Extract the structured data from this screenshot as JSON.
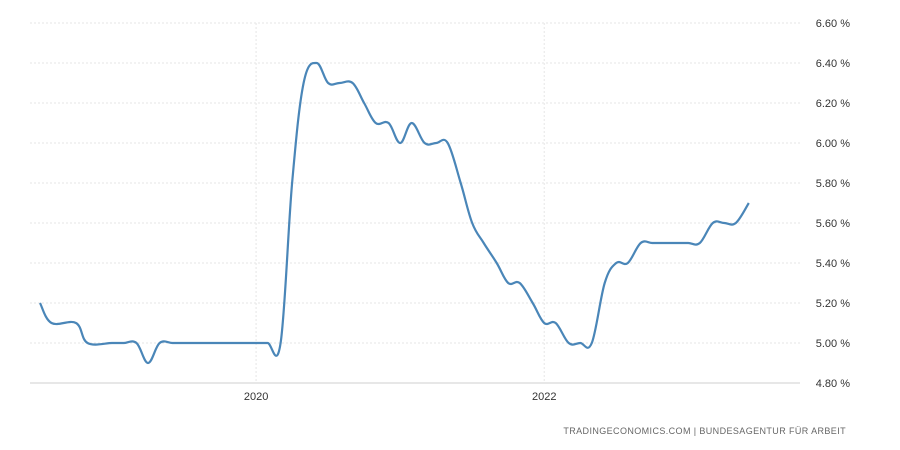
{
  "chart_data": {
    "type": "line",
    "title": "",
    "xlabel": "",
    "ylabel": "",
    "ylim": [
      4.8,
      6.6
    ],
    "xlim": [
      2018.5,
      2023.67
    ],
    "grid": true,
    "y_ticks": [
      "4.80 %",
      "5.00 %",
      "5.20 %",
      "5.40 %",
      "5.60 %",
      "5.80 %",
      "6.00 %",
      "6.20 %",
      "6.40 %",
      "6.60 %"
    ],
    "x_ticks": [
      {
        "label": "2020",
        "value": 2020.0
      },
      {
        "label": "2022",
        "value": 2022.0
      }
    ],
    "series": [
      {
        "color": "#4a86b8",
        "points": [
          [
            2018.5,
            5.2
          ],
          [
            2018.58,
            5.1
          ],
          [
            2018.75,
            5.1
          ],
          [
            2018.83,
            5.0
          ],
          [
            2019.0,
            5.0
          ],
          [
            2019.08,
            5.0
          ],
          [
            2019.17,
            5.0
          ],
          [
            2019.25,
            4.9
          ],
          [
            2019.33,
            5.0
          ],
          [
            2019.42,
            5.0
          ],
          [
            2019.5,
            5.0
          ],
          [
            2019.58,
            5.0
          ],
          [
            2019.67,
            5.0
          ],
          [
            2019.75,
            5.0
          ],
          [
            2019.83,
            5.0
          ],
          [
            2019.92,
            5.0
          ],
          [
            2020.0,
            5.0
          ],
          [
            2020.08,
            5.0
          ],
          [
            2020.17,
            5.0
          ],
          [
            2020.25,
            5.8
          ],
          [
            2020.33,
            6.3
          ],
          [
            2020.42,
            6.4
          ],
          [
            2020.5,
            6.3
          ],
          [
            2020.58,
            6.3
          ],
          [
            2020.67,
            6.3
          ],
          [
            2020.75,
            6.2
          ],
          [
            2020.83,
            6.1
          ],
          [
            2020.92,
            6.1
          ],
          [
            2021.0,
            6.0
          ],
          [
            2021.08,
            6.1
          ],
          [
            2021.17,
            6.0
          ],
          [
            2021.25,
            6.0
          ],
          [
            2021.33,
            6.0
          ],
          [
            2021.42,
            5.8
          ],
          [
            2021.5,
            5.6
          ],
          [
            2021.58,
            5.5
          ],
          [
            2021.67,
            5.4
          ],
          [
            2021.75,
            5.3
          ],
          [
            2021.83,
            5.3
          ],
          [
            2021.92,
            5.2
          ],
          [
            2022.0,
            5.1
          ],
          [
            2022.08,
            5.1
          ],
          [
            2022.17,
            5.0
          ],
          [
            2022.25,
            5.0
          ],
          [
            2022.33,
            5.0
          ],
          [
            2022.42,
            5.3
          ],
          [
            2022.5,
            5.4
          ],
          [
            2022.58,
            5.4
          ],
          [
            2022.67,
            5.5
          ],
          [
            2022.75,
            5.5
          ],
          [
            2022.83,
            5.5
          ],
          [
            2022.92,
            5.5
          ],
          [
            2023.0,
            5.5
          ],
          [
            2023.08,
            5.5
          ],
          [
            2023.17,
            5.6
          ],
          [
            2023.25,
            5.6
          ],
          [
            2023.33,
            5.6
          ],
          [
            2023.42,
            5.7
          ]
        ]
      }
    ]
  },
  "footer": {
    "source": "TRADINGECONOMICS.COM  |  BUNDESAGENTUR FÜR ARBEIT"
  }
}
